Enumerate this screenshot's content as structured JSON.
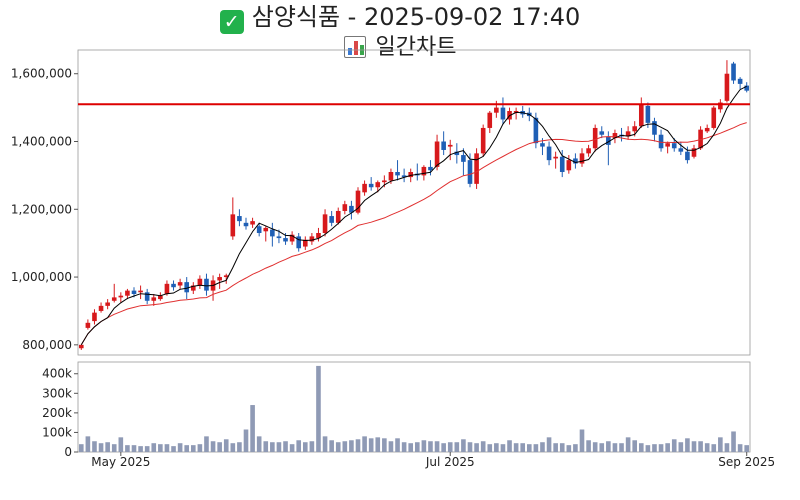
{
  "header": {
    "title": "삼양식품 - 2025-09-02 17:40",
    "subtitle": "일간차트",
    "check_icon": "check-mark-icon",
    "chart_icon": "bar-chart-icon"
  },
  "colors": {
    "up": "#d7191c",
    "down": "#1f5fb5",
    "ma_short": "#000000",
    "ma_long": "#e03030",
    "ref_line": "#dd0000",
    "volume": "#8f9ab5"
  },
  "chart_data": [
    {
      "type": "candlestick",
      "title": "",
      "y_ticks": [
        800000,
        1000000,
        1200000,
        1400000,
        1600000
      ],
      "y_tick_labels": [
        "800,000",
        "1,000,000",
        "1,200,000",
        "1,400,000",
        "1,600,000"
      ],
      "ylim": [
        770000,
        1670000
      ],
      "reference_line": 1510000,
      "x_ticks": [
        "May 2025",
        "Jul 2025",
        "Sep 2025"
      ],
      "candles": [
        [
          790000,
          800000,
          785000,
          800000
        ],
        [
          850000,
          875000,
          845000,
          865000
        ],
        [
          870000,
          905000,
          860000,
          895000
        ],
        [
          900000,
          925000,
          895000,
          915000
        ],
        [
          915000,
          935000,
          905000,
          925000
        ],
        [
          930000,
          980000,
          925000,
          940000
        ],
        [
          940000,
          955000,
          925000,
          945000
        ],
        [
          945000,
          965000,
          935000,
          960000
        ],
        [
          960000,
          970000,
          940000,
          950000
        ],
        [
          955000,
          975000,
          935000,
          960000
        ],
        [
          955000,
          965000,
          920000,
          930000
        ],
        [
          930000,
          950000,
          915000,
          940000
        ],
        [
          935000,
          955000,
          930000,
          945000
        ],
        [
          950000,
          990000,
          945000,
          980000
        ],
        [
          980000,
          990000,
          960000,
          970000
        ],
        [
          975000,
          995000,
          965000,
          985000
        ],
        [
          985000,
          1000000,
          935000,
          955000
        ],
        [
          960000,
          985000,
          950000,
          975000
        ],
        [
          975000,
          1005000,
          965000,
          995000
        ],
        [
          995000,
          1010000,
          945000,
          960000
        ],
        [
          960000,
          1005000,
          930000,
          990000
        ],
        [
          990000,
          1010000,
          965000,
          1000000
        ],
        [
          1000000,
          1010000,
          980000,
          1005000
        ],
        [
          1120000,
          1235000,
          1110000,
          1185000
        ],
        [
          1180000,
          1200000,
          1150000,
          1165000
        ],
        [
          1160000,
          1175000,
          1140000,
          1150000
        ],
        [
          1155000,
          1175000,
          1145000,
          1165000
        ],
        [
          1150000,
          1160000,
          1120000,
          1130000
        ],
        [
          1135000,
          1150000,
          1105000,
          1145000
        ],
        [
          1140000,
          1160000,
          1090000,
          1120000
        ],
        [
          1120000,
          1140000,
          1100000,
          1115000
        ],
        [
          1115000,
          1130000,
          1095000,
          1105000
        ],
        [
          1105000,
          1135000,
          1095000,
          1125000
        ],
        [
          1120000,
          1130000,
          1075000,
          1085000
        ],
        [
          1090000,
          1120000,
          1080000,
          1110000
        ],
        [
          1105000,
          1130000,
          1095000,
          1120000
        ],
        [
          1115000,
          1145000,
          1105000,
          1130000
        ],
        [
          1130000,
          1200000,
          1120000,
          1185000
        ],
        [
          1180000,
          1195000,
          1150000,
          1160000
        ],
        [
          1160000,
          1205000,
          1155000,
          1195000
        ],
        [
          1195000,
          1225000,
          1185000,
          1215000
        ],
        [
          1210000,
          1225000,
          1170000,
          1190000
        ],
        [
          1190000,
          1265000,
          1185000,
          1255000
        ],
        [
          1250000,
          1285000,
          1240000,
          1275000
        ],
        [
          1275000,
          1295000,
          1255000,
          1265000
        ],
        [
          1265000,
          1285000,
          1250000,
          1280000
        ],
        [
          1280000,
          1300000,
          1265000,
          1285000
        ],
        [
          1285000,
          1320000,
          1275000,
          1310000
        ],
        [
          1310000,
          1345000,
          1285000,
          1300000
        ],
        [
          1300000,
          1320000,
          1280000,
          1295000
        ],
        [
          1295000,
          1320000,
          1280000,
          1310000
        ],
        [
          1305000,
          1335000,
          1285000,
          1300000
        ],
        [
          1300000,
          1330000,
          1285000,
          1325000
        ],
        [
          1325000,
          1345000,
          1300000,
          1315000
        ],
        [
          1325000,
          1420000,
          1315000,
          1400000
        ],
        [
          1400000,
          1430000,
          1360000,
          1375000
        ],
        [
          1385000,
          1405000,
          1345000,
          1390000
        ],
        [
          1370000,
          1395000,
          1335000,
          1360000
        ],
        [
          1360000,
          1380000,
          1300000,
          1340000
        ],
        [
          1345000,
          1365000,
          1265000,
          1275000
        ],
        [
          1275000,
          1380000,
          1260000,
          1365000
        ],
        [
          1365000,
          1450000,
          1355000,
          1440000
        ],
        [
          1440000,
          1490000,
          1425000,
          1485000
        ],
        [
          1485000,
          1520000,
          1470000,
          1500000
        ],
        [
          1500000,
          1530000,
          1450000,
          1465000
        ],
        [
          1465000,
          1500000,
          1450000,
          1490000
        ],
        [
          1485000,
          1500000,
          1465000,
          1490000
        ],
        [
          1490000,
          1505000,
          1470000,
          1480000
        ],
        [
          1485000,
          1500000,
          1460000,
          1475000
        ],
        [
          1470000,
          1485000,
          1380000,
          1395000
        ],
        [
          1395000,
          1410000,
          1360000,
          1385000
        ],
        [
          1385000,
          1400000,
          1330000,
          1345000
        ],
        [
          1350000,
          1370000,
          1320000,
          1355000
        ],
        [
          1355000,
          1375000,
          1295000,
          1310000
        ],
        [
          1315000,
          1360000,
          1305000,
          1345000
        ],
        [
          1350000,
          1365000,
          1320000,
          1335000
        ],
        [
          1335000,
          1380000,
          1325000,
          1365000
        ],
        [
          1365000,
          1390000,
          1355000,
          1380000
        ],
        [
          1380000,
          1450000,
          1370000,
          1440000
        ],
        [
          1430000,
          1445000,
          1410000,
          1420000
        ],
        [
          1415000,
          1430000,
          1330000,
          1390000
        ],
        [
          1410000,
          1435000,
          1395000,
          1425000
        ],
        [
          1420000,
          1440000,
          1400000,
          1415000
        ],
        [
          1415000,
          1445000,
          1405000,
          1430000
        ],
        [
          1430000,
          1460000,
          1415000,
          1445000
        ],
        [
          1445000,
          1530000,
          1440000,
          1510000
        ],
        [
          1505000,
          1515000,
          1440000,
          1455000
        ],
        [
          1460000,
          1470000,
          1400000,
          1420000
        ],
        [
          1420000,
          1435000,
          1370000,
          1380000
        ],
        [
          1385000,
          1400000,
          1365000,
          1395000
        ],
        [
          1395000,
          1410000,
          1370000,
          1380000
        ],
        [
          1380000,
          1400000,
          1360000,
          1370000
        ],
        [
          1370000,
          1385000,
          1335000,
          1345000
        ],
        [
          1355000,
          1390000,
          1350000,
          1380000
        ],
        [
          1380000,
          1445000,
          1375000,
          1435000
        ],
        [
          1430000,
          1450000,
          1425000,
          1440000
        ],
        [
          1440000,
          1505000,
          1435000,
          1500000
        ],
        [
          1495000,
          1525000,
          1485000,
          1515000
        ],
        [
          1520000,
          1640000,
          1515000,
          1600000
        ],
        [
          1630000,
          1635000,
          1570000,
          1580000
        ],
        [
          1585000,
          1590000,
          1555000,
          1570000
        ],
        [
          1565000,
          1575000,
          1545000,
          1550000
        ]
      ]
    },
    {
      "type": "bar",
      "title": "",
      "y_ticks": [
        0,
        100000,
        200000,
        300000,
        400000
      ],
      "y_tick_labels": [
        "0",
        "100k",
        "200k",
        "300k",
        "400k"
      ],
      "ylim": [
        0,
        460000
      ],
      "values": [
        40000,
        80000,
        55000,
        45000,
        50000,
        40000,
        75000,
        35000,
        35000,
        30000,
        30000,
        45000,
        40000,
        40000,
        30000,
        45000,
        35000,
        35000,
        40000,
        80000,
        55000,
        50000,
        65000,
        45000,
        50000,
        115000,
        240000,
        80000,
        55000,
        50000,
        50000,
        55000,
        40000,
        60000,
        50000,
        55000,
        440000,
        80000,
        60000,
        50000,
        55000,
        60000,
        65000,
        80000,
        70000,
        75000,
        70000,
        55000,
        70000,
        50000,
        45000,
        50000,
        60000,
        55000,
        55000,
        45000,
        50000,
        50000,
        65000,
        50000,
        45000,
        55000,
        40000,
        45000,
        40000,
        60000,
        45000,
        45000,
        40000,
        40000,
        50000,
        75000,
        45000,
        45000,
        35000,
        40000,
        115000,
        60000,
        50000,
        45000,
        55000,
        45000,
        45000,
        75000,
        60000,
        45000,
        35000,
        40000,
        40000,
        45000,
        65000,
        50000,
        70000,
        55000,
        55000,
        45000,
        40000,
        75000,
        45000,
        105000,
        40000,
        35000
      ]
    }
  ]
}
